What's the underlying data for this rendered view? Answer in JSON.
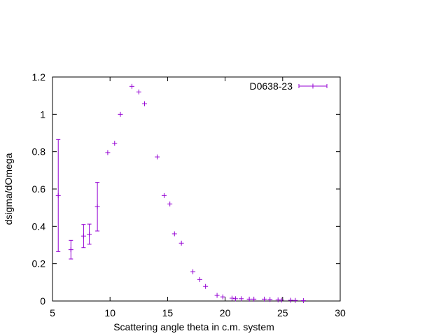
{
  "chart_data": {
    "type": "scatter",
    "xlabel": "Scattering angle theta in c.m. system",
    "ylabel": "dsigma/dOmega",
    "xlim": [
      5,
      30
    ],
    "ylim": [
      0,
      1.2
    ],
    "xticks": [
      5,
      10,
      15,
      20,
      25,
      30
    ],
    "yticks": [
      0,
      0.2,
      0.4,
      0.6,
      0.8,
      1,
      1.2
    ],
    "ytick_labels": [
      "0",
      "0.2",
      "0.4",
      "0.6",
      "0.8",
      "1",
      "1.2"
    ],
    "grid": false,
    "legend_position": "top-right",
    "series": [
      {
        "name": "D0638-23",
        "color": "#9400d3",
        "marker": "plus",
        "points": [
          {
            "x": 5.5,
            "y": 0.565,
            "err": 0.3
          },
          {
            "x": 6.6,
            "y": 0.275,
            "err": 0.05
          },
          {
            "x": 7.7,
            "y": 0.348,
            "err": 0.062
          },
          {
            "x": 8.2,
            "y": 0.358,
            "err": 0.054
          },
          {
            "x": 8.9,
            "y": 0.505,
            "err": 0.13
          },
          {
            "x": 9.8,
            "y": 0.795,
            "err": 0
          },
          {
            "x": 10.4,
            "y": 0.845,
            "err": 0
          },
          {
            "x": 10.9,
            "y": 1.0,
            "err": 0
          },
          {
            "x": 11.9,
            "y": 1.15,
            "err": 0
          },
          {
            "x": 12.5,
            "y": 1.12,
            "err": 0
          },
          {
            "x": 13.0,
            "y": 1.057,
            "err": 0
          },
          {
            "x": 14.1,
            "y": 0.772,
            "err": 0
          },
          {
            "x": 14.7,
            "y": 0.565,
            "err": 0
          },
          {
            "x": 15.2,
            "y": 0.52,
            "err": 0
          },
          {
            "x": 15.6,
            "y": 0.36,
            "err": 0
          },
          {
            "x": 16.2,
            "y": 0.31,
            "err": 0
          },
          {
            "x": 17.2,
            "y": 0.157,
            "err": 0
          },
          {
            "x": 17.8,
            "y": 0.115,
            "err": 0
          },
          {
            "x": 18.3,
            "y": 0.078,
            "err": 0
          },
          {
            "x": 19.3,
            "y": 0.03,
            "err": 0
          },
          {
            "x": 19.8,
            "y": 0.022,
            "err": 0
          },
          {
            "x": 20.6,
            "y": 0.015,
            "err": 0
          },
          {
            "x": 20.9,
            "y": 0.012,
            "err": 0
          },
          {
            "x": 21.4,
            "y": 0.012,
            "err": 0
          },
          {
            "x": 22.1,
            "y": 0.01,
            "err": 0
          },
          {
            "x": 22.5,
            "y": 0.01,
            "err": 0
          },
          {
            "x": 23.4,
            "y": 0.01,
            "err": 0
          },
          {
            "x": 23.9,
            "y": 0.008,
            "err": 0
          },
          {
            "x": 24.6,
            "y": 0.006,
            "err": 0
          },
          {
            "x": 24.9,
            "y": 0.005,
            "err": 0
          },
          {
            "x": 25.7,
            "y": 0.004,
            "err": 0
          },
          {
            "x": 26.1,
            "y": 0.003,
            "err": 0
          },
          {
            "x": 26.8,
            "y": 0.002,
            "err": 0
          }
        ]
      }
    ]
  }
}
